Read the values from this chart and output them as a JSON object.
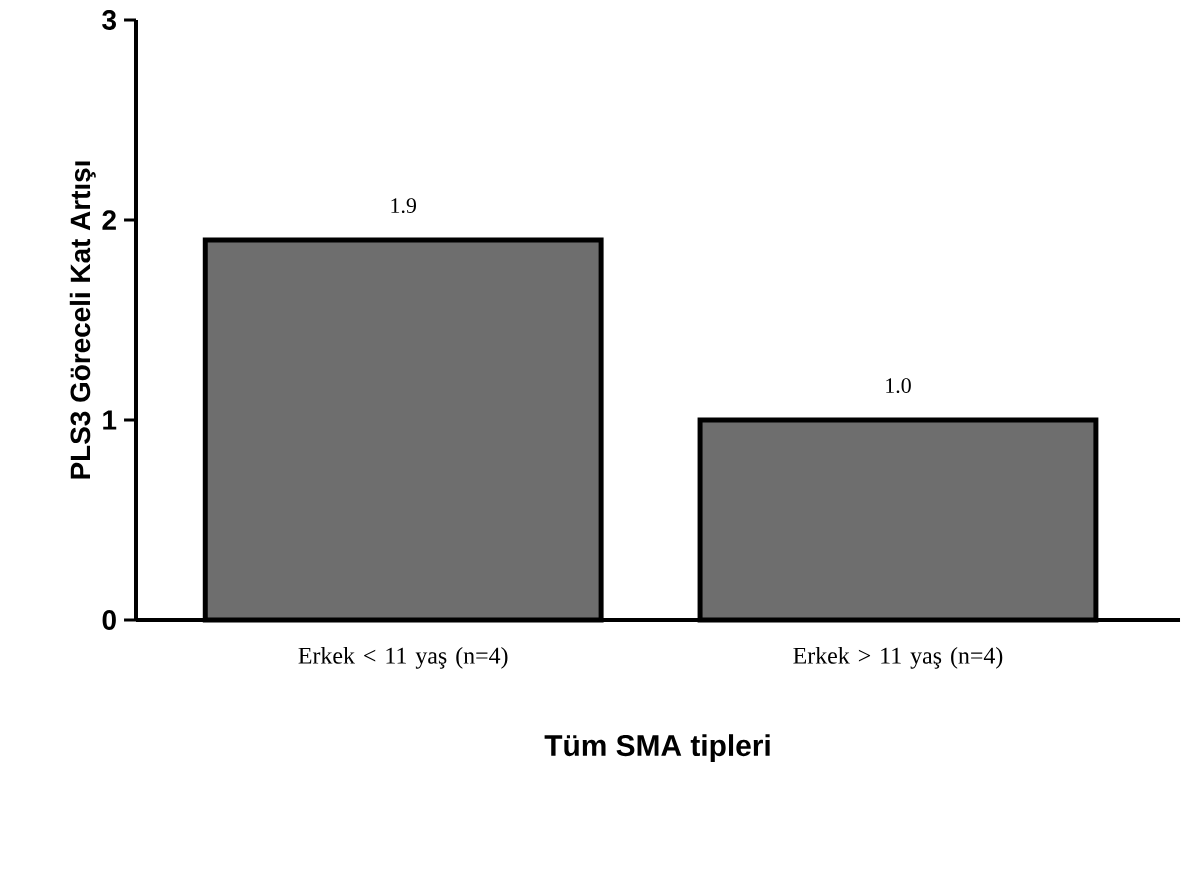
{
  "chart_data": {
    "type": "bar",
    "xlabel": "Tüm SMA tipleri",
    "ylabel": "PLS3 Göreceli  Kat Artışı",
    "categories": [
      "Erkek < 11 yaş (n=4)",
      "Erkek > 11 yaş (n=4)"
    ],
    "values": [
      1.9,
      1.0
    ],
    "value_labels": [
      "1.9",
      "1.0"
    ],
    "color": "#6e6e6e",
    "ylim": [
      0,
      3
    ],
    "yticks": [
      0,
      1,
      2,
      3
    ],
    "grid": false
  }
}
